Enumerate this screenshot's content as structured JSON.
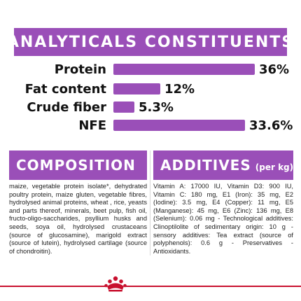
{
  "analytical": {
    "title": "ANALYTICALS CONSTITUENTS",
    "rows": [
      {
        "label": "Protein",
        "value": "36%",
        "fraction": 0.36
      },
      {
        "label": "Fat content",
        "value": "12%",
        "fraction": 0.12
      },
      {
        "label": "Crude fiber",
        "value": "5.3%",
        "fraction": 0.053
      },
      {
        "label": "NFE",
        "value": "33.6%",
        "fraction": 0.336
      }
    ]
  },
  "composition": {
    "title": "COMPOSITION",
    "text": "maize, vegetable protein isolate*, dehydrated poultry protein, maize gluten, vegetable fibres, hydrolysed animal proteins, wheat , rice, yeasts and parts thereof, minerals, beet pulp, fish oil, fructo-oligo-saccharides, psyllium husks and seeds, soya oil, hydrolysed crustaceans (source of glucosamine), marigold extract (source of lutein), hydrolysed cartilage (source of chondroitin)."
  },
  "additives": {
    "title": "ADDITIVES",
    "subtitle": "(per kg)",
    "text": "Vitamin A: 17000 IU, Vitamin D3: 900 IU, Vitamin C: 180 mg, E1 (Iron): 35 mg, E2 (Iodine): 3.5 mg, E4 (Copper): 11 mg, E5 (Manganese): 45 mg, E6 (Zinc): 136 mg, E8 (Selenium): 0.06 mg - Technological additives: Clinoptilolite of sedimentary origin: 10 g - sensory additives: Tea extract (source of polyphenols): 0.6 g - Preservatives - Antioxidants."
  },
  "colors": {
    "accent": "#9a4fb8",
    "brand_red": "#c8102e"
  },
  "footer": {
    "logo_icon": "royal-canin-crown-logo"
  }
}
